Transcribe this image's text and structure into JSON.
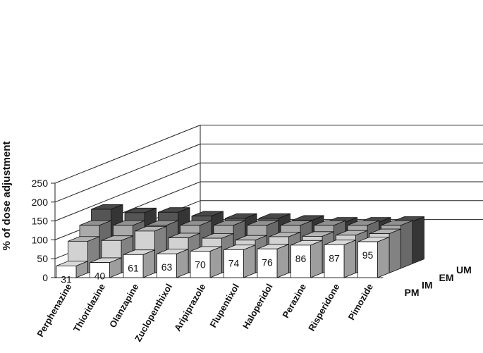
{
  "chart_data": {
    "type": "bar",
    "variant": "3d-grouped",
    "ylabel": "% of dose adjustment",
    "ylim": [
      0,
      250
    ],
    "yticks": [
      0,
      50,
      100,
      150,
      200,
      250
    ],
    "grid": true,
    "categories": [
      "Perphenazine",
      "Thioridazine",
      "Olanzapine",
      "Zuclopenthixol",
      "Aripiprazole",
      "Flupentixol",
      "Haloperidol",
      "Perazine",
      "Risperidone",
      "Pimozide"
    ],
    "series": [
      {
        "name": "PM",
        "color": "#ffffff",
        "values": [
          31,
          40,
          61,
          63,
          70,
          74,
          76,
          86,
          87,
          95
        ],
        "labels": [
          "31",
          "40",
          "61",
          "63",
          "70",
          "74",
          "76",
          "86",
          "87",
          "95"
        ]
      },
      {
        "name": "IM",
        "color": "#d2d2d2",
        "values": [
          84,
          86,
          111,
          93,
          92,
          87,
          96,
          97,
          100,
          104
        ]
      },
      {
        "name": "EM",
        "color": "#aaaaaa",
        "values": [
          114,
          114,
          114,
          114,
          114,
          114,
          114,
          114,
          114,
          114
        ]
      },
      {
        "name": "UM",
        "color": "#555555",
        "values": [
          144,
          135,
          136,
          126,
          120,
          120,
          115,
          110,
          110,
          112
        ]
      }
    ]
  }
}
